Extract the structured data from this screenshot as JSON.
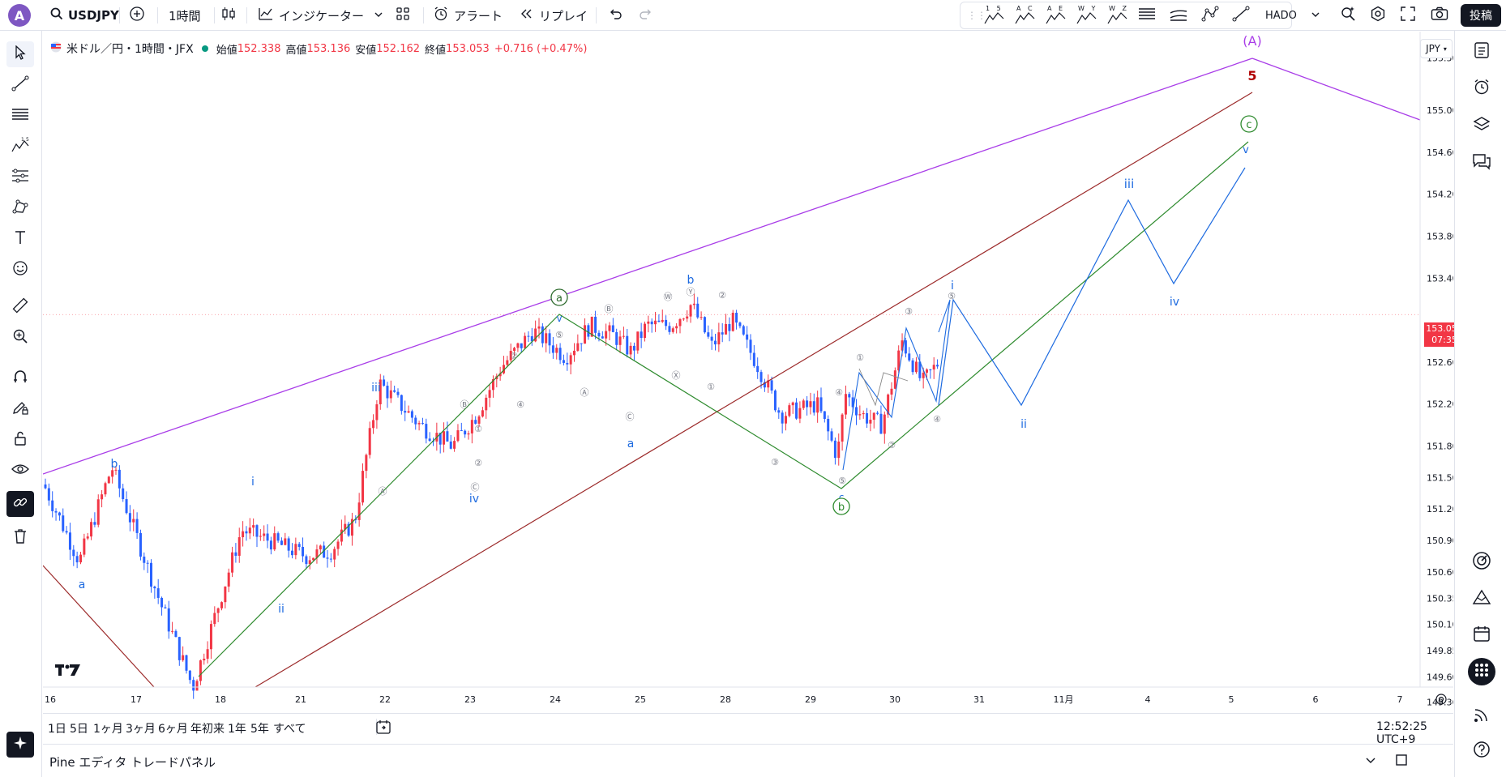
{
  "topbar": {
    "avatar": "A",
    "symbol": "USDJPY",
    "interval": "1時間",
    "indicators": "インジケーター",
    "alert": "アラート",
    "replay": "リプレイ",
    "template_name": "HADO",
    "post_label": "投稿",
    "pattern_labels": [
      "1 5",
      "A C",
      "A E",
      "W Y",
      "W Z"
    ]
  },
  "legend": {
    "title": "米ドル／円・1時間・JFX",
    "open_label": "始値",
    "open": "152.338",
    "high_label": "高値",
    "high": "153.136",
    "low_label": "安値",
    "low": "152.162",
    "close_label": "終値",
    "close": "153.053",
    "change": "+0.716 (+0.47%)"
  },
  "price_axis": {
    "currency": "JPY",
    "ticks": [
      "155.500",
      "155.000",
      "154.600",
      "154.200",
      "153.800",
      "153.400",
      "152.600",
      "152.200",
      "151.800",
      "151.500",
      "151.200",
      "150.900",
      "150.600",
      "150.350",
      "150.100",
      "149.850",
      "149.600",
      "149.360"
    ],
    "current_price": "153.053",
    "countdown": "07:35"
  },
  "time_axis": {
    "ticks": [
      "16",
      "17",
      "18",
      "21",
      "22",
      "23",
      "24",
      "25",
      "28",
      "29",
      "30",
      "31",
      "11月",
      "4",
      "5",
      "6",
      "7"
    ]
  },
  "range_bar": {
    "ranges": [
      "1日",
      "5日",
      "1ヶ月",
      "3ヶ月",
      "6ヶ月",
      "年初来",
      "1年",
      "5年",
      "すべて"
    ],
    "clock": "12:52:25 UTC+9"
  },
  "footer": {
    "tabs": [
      "Pine エディタ",
      "トレードパネル"
    ]
  },
  "colors": {
    "up": "#f23645",
    "down": "#2962ff",
    "purple": "#a93de8",
    "darkred": "#9c2a2a",
    "green": "#2e8b2e",
    "wave_blue": "#1e6be0"
  },
  "chart_data": {
    "type": "candlestick",
    "symbol": "USDJPY",
    "interval": "1h",
    "ylim": [
      149.25,
      155.75
    ],
    "current_price": 153.053,
    "wave_labels": [
      "a",
      "b",
      "i",
      "ii",
      "iii",
      "iv",
      "v",
      "a",
      "b",
      "c",
      "i",
      "ii",
      "iii",
      "iv",
      "v",
      "(A)",
      "5"
    ]
  },
  "wave_text": {
    "a1": "a",
    "b1": "b",
    "i1": "i",
    "ii1": "ii",
    "iii1": "iii",
    "iv1": "iv",
    "v1": "v",
    "a2": "a",
    "b2": "b",
    "c2": "c",
    "A": "(A)",
    "five": "5",
    "i2": "i",
    "ii2": "ii",
    "iii2": "iii",
    "iv2": "iv",
    "v2": "v",
    "circ_a": "a",
    "circ_b": "b",
    "circ_c": "c"
  }
}
